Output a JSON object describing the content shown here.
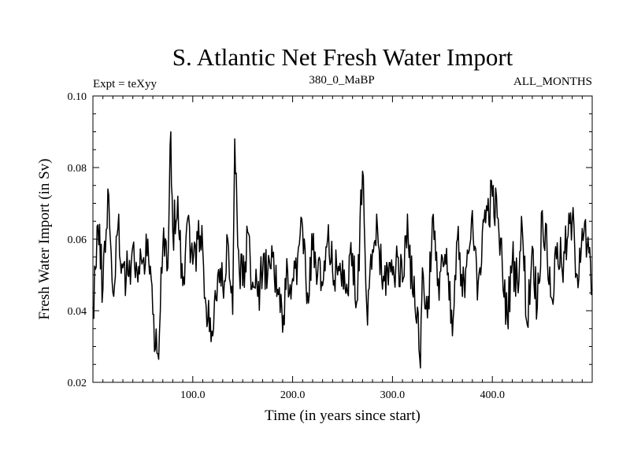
{
  "chart_data": {
    "type": "line",
    "title": "S. Atlantic Net Fresh Water Import",
    "header_left": "Expt = teXyy",
    "header_center": "380_0_MaBP",
    "header_right": "ALL_MONTHS",
    "xlabel": "Time (in years since start)",
    "ylabel": "Fresh Water Import (in Sv)",
    "xlim": [
      0,
      500
    ],
    "ylim": [
      0.02,
      0.1
    ],
    "xticks": [
      100,
      200,
      300,
      400
    ],
    "xtick_labels": [
      "100.0",
      "200.0",
      "300.0",
      "400.0"
    ],
    "yticks": [
      0.02,
      0.04,
      0.06,
      0.08,
      0.1
    ],
    "ytick_labels": [
      "0.02",
      "0.04",
      "0.06",
      "0.08",
      "0.10"
    ],
    "grid": false,
    "line_color": "#000000",
    "series": [
      {
        "x": [
          0,
          5,
          10,
          15,
          20,
          25,
          30,
          35,
          40,
          45,
          50,
          55,
          60,
          65,
          70,
          75,
          78,
          80,
          85,
          90,
          95,
          100,
          105,
          110,
          115,
          120,
          125,
          130,
          135,
          140,
          142,
          145,
          150,
          155,
          160,
          165,
          170,
          175,
          180,
          185,
          190,
          195,
          200,
          205,
          210,
          215,
          220,
          225,
          230,
          235,
          240,
          245,
          250,
          255,
          260,
          265,
          270,
          275,
          280,
          285,
          290,
          295,
          300,
          305,
          310,
          315,
          320,
          325,
          328,
          330,
          335,
          340,
          345,
          350,
          355,
          360,
          365,
          370,
          375,
          380,
          385,
          390,
          395,
          400,
          405,
          410,
          415,
          420,
          425,
          430,
          435,
          440,
          445,
          450,
          455,
          460,
          465,
          470,
          475,
          480,
          485,
          490,
          495,
          500
        ],
        "y": [
          0.041,
          0.064,
          0.046,
          0.074,
          0.045,
          0.063,
          0.052,
          0.05,
          0.058,
          0.048,
          0.054,
          0.06,
          0.039,
          0.028,
          0.058,
          0.052,
          0.09,
          0.062,
          0.072,
          0.047,
          0.066,
          0.053,
          0.06,
          0.057,
          0.037,
          0.033,
          0.05,
          0.047,
          0.06,
          0.039,
          0.088,
          0.058,
          0.047,
          0.062,
          0.048,
          0.044,
          0.051,
          0.05,
          0.055,
          0.046,
          0.034,
          0.051,
          0.049,
          0.055,
          0.063,
          0.045,
          0.057,
          0.05,
          0.047,
          0.06,
          0.051,
          0.05,
          0.054,
          0.045,
          0.056,
          0.043,
          0.079,
          0.036,
          0.057,
          0.063,
          0.046,
          0.052,
          0.05,
          0.055,
          0.048,
          0.067,
          0.045,
          0.041,
          0.024,
          0.052,
          0.038,
          0.066,
          0.047,
          0.055,
          0.05,
          0.033,
          0.06,
          0.044,
          0.057,
          0.068,
          0.043,
          0.062,
          0.068,
          0.072,
          0.066,
          0.052,
          0.038,
          0.054,
          0.049,
          0.063,
          0.036,
          0.058,
          0.041,
          0.068,
          0.055,
          0.043,
          0.059,
          0.051,
          0.06,
          0.065,
          0.05,
          0.063,
          0.058,
          0.046
        ]
      }
    ]
  }
}
